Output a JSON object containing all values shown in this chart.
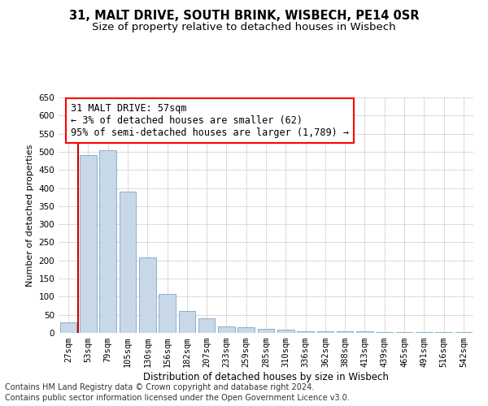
{
  "title1": "31, MALT DRIVE, SOUTH BRINK, WISBECH, PE14 0SR",
  "title2": "Size of property relative to detached houses in Wisbech",
  "xlabel": "Distribution of detached houses by size in Wisbech",
  "ylabel": "Number of detached properties",
  "footer1": "Contains HM Land Registry data © Crown copyright and database right 2024.",
  "footer2": "Contains public sector information licensed under the Open Government Licence v3.0.",
  "annotation_line1": "31 MALT DRIVE: 57sqm",
  "annotation_line2": "← 3% of detached houses are smaller (62)",
  "annotation_line3": "95% of semi-detached houses are larger (1,789) →",
  "categories": [
    "27sqm",
    "53sqm",
    "79sqm",
    "105sqm",
    "130sqm",
    "156sqm",
    "182sqm",
    "207sqm",
    "233sqm",
    "259sqm",
    "285sqm",
    "310sqm",
    "336sqm",
    "362sqm",
    "388sqm",
    "413sqm",
    "439sqm",
    "465sqm",
    "491sqm",
    "516sqm",
    "542sqm"
  ],
  "values": [
    30,
    490,
    505,
    390,
    208,
    108,
    60,
    40,
    18,
    15,
    12,
    10,
    5,
    5,
    4,
    4,
    3,
    3,
    3,
    2,
    3
  ],
  "bar_color": "#c8d8e8",
  "bar_edge_color": "#6699bb",
  "ylim": [
    0,
    650
  ],
  "yticks": [
    0,
    50,
    100,
    150,
    200,
    250,
    300,
    350,
    400,
    450,
    500,
    550,
    600,
    650
  ],
  "marker_color": "#cc0000",
  "bg_color": "#ffffff",
  "grid_color": "#cccccc",
  "title1_fontsize": 10.5,
  "title2_fontsize": 9.5,
  "xlabel_fontsize": 8.5,
  "ylabel_fontsize": 8,
  "tick_fontsize": 7.5,
  "annotation_fontsize": 8.5,
  "footer_fontsize": 7
}
